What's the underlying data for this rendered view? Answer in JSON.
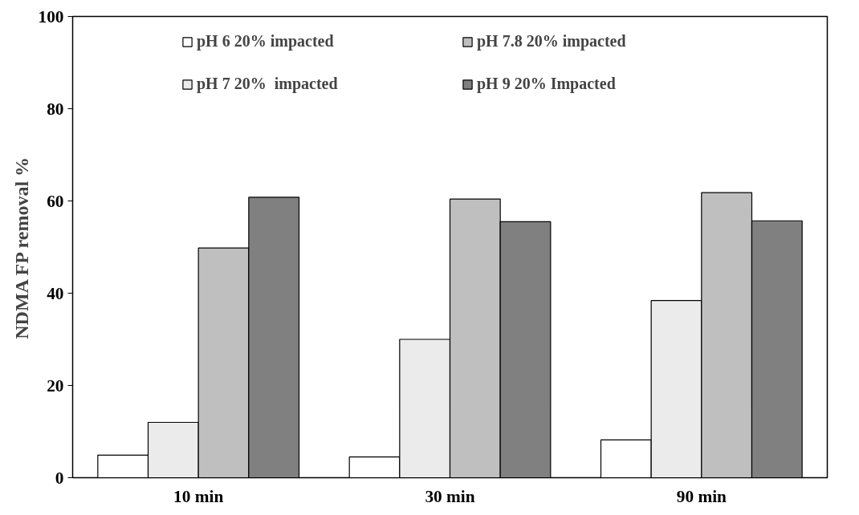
{
  "chart_data": {
    "type": "bar",
    "ylabel": "NDMA FP removal %",
    "categories": [
      "10 min",
      "30 min",
      "90 min"
    ],
    "series": [
      {
        "name": "pH 6 20% impacted",
        "color": "#ffffff",
        "values": [
          4.9,
          4.5,
          8.2
        ]
      },
      {
        "name": "pH 7 20%  impacted",
        "color": "#ebebeb",
        "values": [
          12,
          30,
          38.4
        ]
      },
      {
        "name": "pH 7.8 20% impacted",
        "color": "#bfbfbf",
        "values": [
          49.8,
          60.4,
          61.8
        ]
      },
      {
        "name": "pH 9 20% Impacted",
        "color": "#808080",
        "values": [
          60.8,
          55.5,
          55.7
        ]
      }
    ],
    "ylim": [
      0,
      100
    ],
    "yticks": [
      0,
      20,
      40,
      60,
      80,
      100
    ],
    "grid": false,
    "legend": "top"
  }
}
